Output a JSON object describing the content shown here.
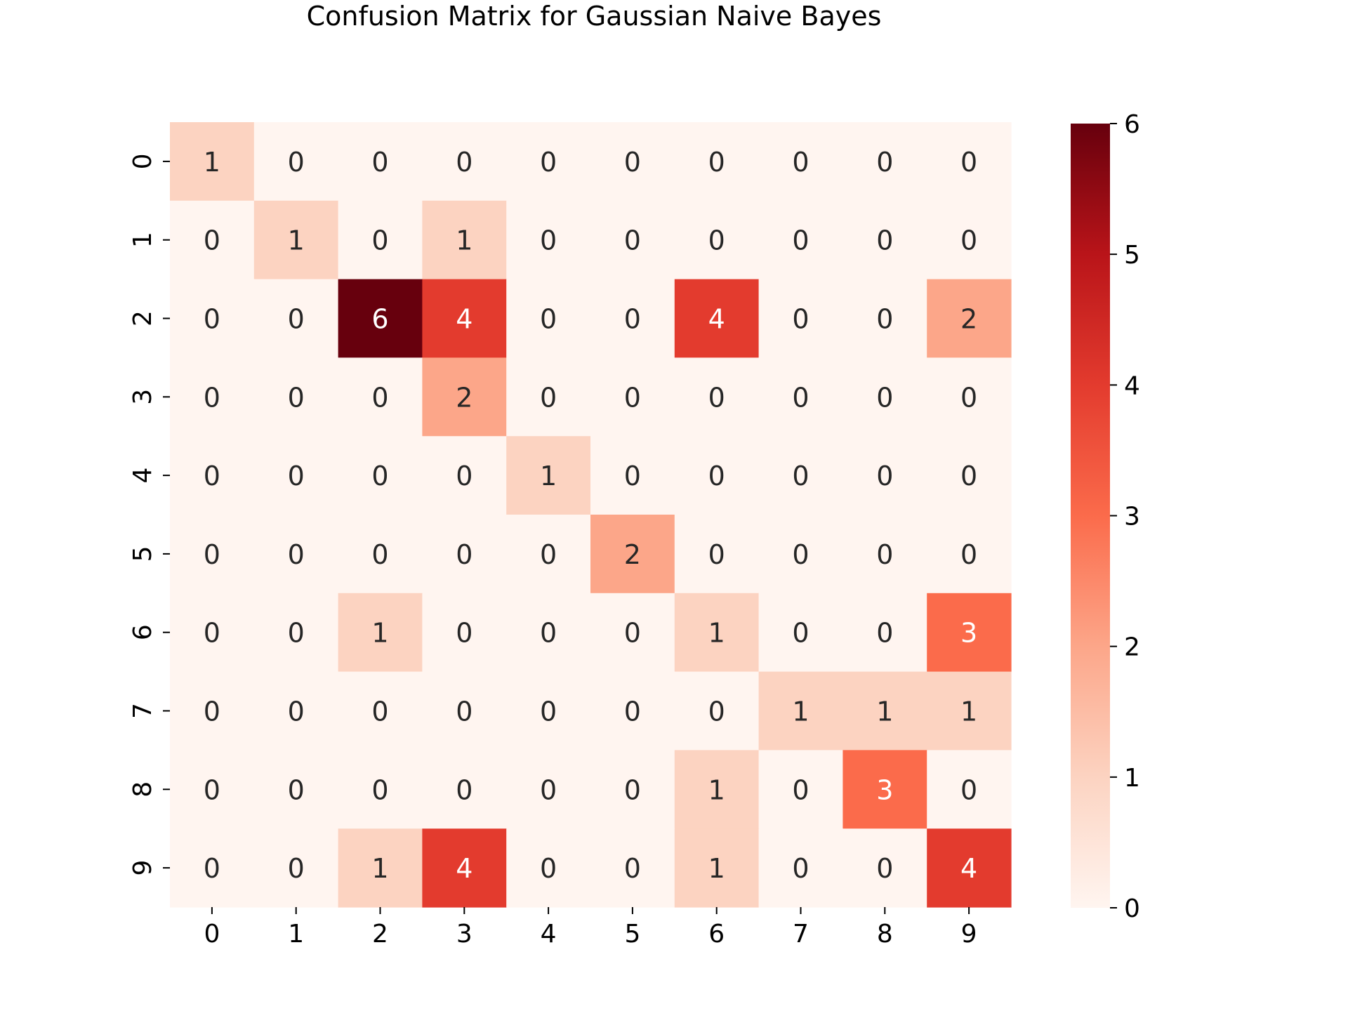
{
  "chart_data": {
    "type": "heatmap",
    "title": "Confusion Matrix for Gaussian Naive Bayes",
    "xlabel": "",
    "ylabel": "",
    "x_categories": [
      "0",
      "1",
      "2",
      "3",
      "4",
      "5",
      "6",
      "7",
      "8",
      "9"
    ],
    "y_categories": [
      "0",
      "1",
      "2",
      "3",
      "4",
      "5",
      "6",
      "7",
      "8",
      "9"
    ],
    "matrix": [
      [
        1,
        0,
        0,
        0,
        0,
        0,
        0,
        0,
        0,
        0
      ],
      [
        0,
        1,
        0,
        1,
        0,
        0,
        0,
        0,
        0,
        0
      ],
      [
        0,
        0,
        6,
        4,
        0,
        0,
        4,
        0,
        0,
        2
      ],
      [
        0,
        0,
        0,
        2,
        0,
        0,
        0,
        0,
        0,
        0
      ],
      [
        0,
        0,
        0,
        0,
        1,
        0,
        0,
        0,
        0,
        0
      ],
      [
        0,
        0,
        0,
        0,
        0,
        2,
        0,
        0,
        0,
        0
      ],
      [
        0,
        0,
        1,
        0,
        0,
        0,
        1,
        0,
        0,
        3
      ],
      [
        0,
        0,
        0,
        0,
        0,
        0,
        0,
        1,
        1,
        1
      ],
      [
        0,
        0,
        0,
        0,
        0,
        0,
        1,
        0,
        3,
        0
      ],
      [
        0,
        0,
        1,
        4,
        0,
        0,
        1,
        0,
        0,
        4
      ]
    ],
    "annotations": true,
    "colormap": "Reds",
    "colorbar": {
      "range": [
        0,
        6
      ],
      "ticks": [
        0,
        1,
        2,
        3,
        4,
        5,
        6
      ]
    },
    "grid": false,
    "legend": "colorbar-right"
  },
  "colors": {
    "cell_scale": [
      "#fff5f0",
      "#fcd3c1",
      "#fca689",
      "#fb6b4b",
      "#e33b2e",
      "#b91419",
      "#67000d"
    ],
    "annotation_dark": "#262626",
    "annotation_light": "#ffffff",
    "axis": "#000000"
  }
}
